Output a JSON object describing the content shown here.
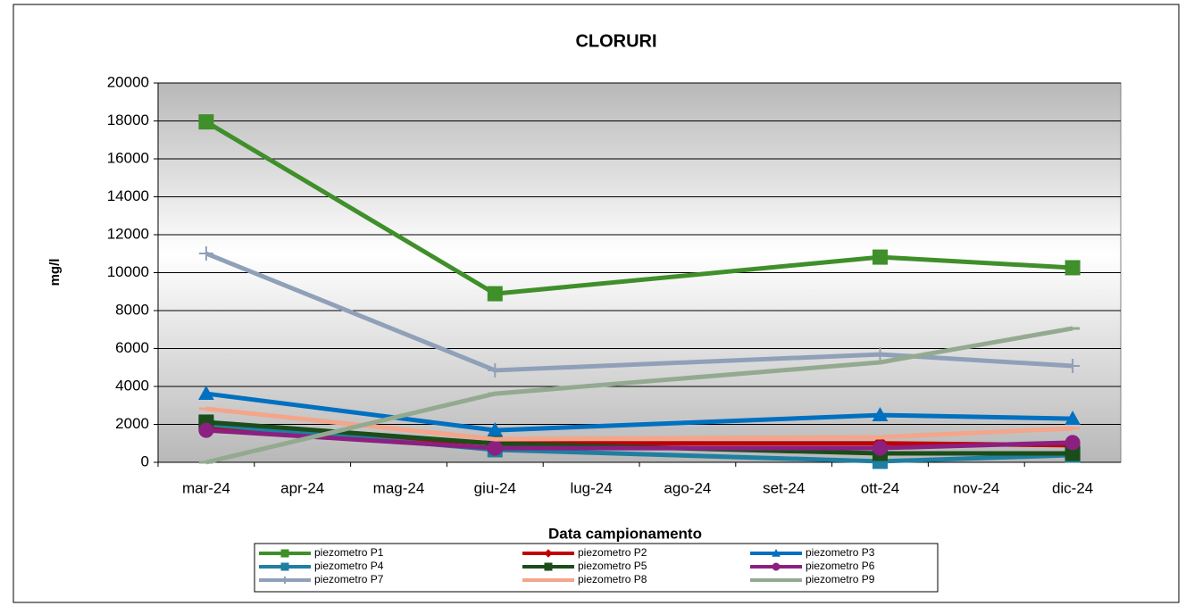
{
  "chart_data": {
    "type": "line",
    "title": "CLORURI",
    "x_label": "Data campionamento",
    "y_label": "mg/l",
    "categories": [
      "mar-24",
      "apr-24",
      "mag-24",
      "giu-24",
      "lug-24",
      "ago-24",
      "set-24",
      "ott-24",
      "nov-24",
      "dic-24"
    ],
    "ylim": [
      0,
      20000
    ],
    "yticks": [
      0,
      2000,
      4000,
      6000,
      8000,
      10000,
      12000,
      14000,
      16000,
      18000,
      20000
    ],
    "grid": true,
    "series": [
      {
        "name": "piezometro  P1",
        "color": "#3f8f2a",
        "marker": "square",
        "values": [
          17950,
          null,
          null,
          8890,
          null,
          null,
          null,
          10820,
          null,
          10260
        ]
      },
      {
        "name": "piezometro P2",
        "color": "#c00000",
        "marker": "diamond",
        "values": [
          1800,
          null,
          null,
          1000,
          null,
          null,
          null,
          1000,
          null,
          900
        ]
      },
      {
        "name": "piezometro P3",
        "color": "#0070c0",
        "marker": "triangle",
        "values": [
          3620,
          null,
          null,
          1690,
          null,
          null,
          null,
          2490,
          null,
          2300
        ]
      },
      {
        "name": "piezometro P4",
        "color": "#1f7fa0",
        "marker": "square",
        "values": [
          2000,
          null,
          null,
          660,
          null,
          null,
          null,
          50,
          null,
          380
        ]
      },
      {
        "name": "piezometro P5",
        "color": "#1a4d1a",
        "marker": "square",
        "values": [
          2120,
          null,
          null,
          990,
          null,
          null,
          null,
          470,
          null,
          470
        ]
      },
      {
        "name": "piezometro P6",
        "color": "#8b2080",
        "marker": "circle",
        "values": [
          1690,
          null,
          null,
          750,
          null,
          null,
          null,
          750,
          null,
          1040
        ]
      },
      {
        "name": "piezometro P7",
        "color": "#8fa0b8",
        "marker": "plus",
        "values": [
          11010,
          null,
          null,
          4850,
          null,
          null,
          null,
          5690,
          null,
          5080
        ]
      },
      {
        "name": "piezometro P8",
        "color": "#f4a58a",
        "marker": "dash",
        "values": [
          2820,
          null,
          null,
          1220,
          null,
          null,
          null,
          1320,
          null,
          1790
        ]
      },
      {
        "name": "piezometro P9",
        "color": "#93aa90",
        "marker": "dash",
        "values": [
          0,
          null,
          null,
          3620,
          null,
          null,
          null,
          5270,
          null,
          7060
        ]
      }
    ]
  }
}
